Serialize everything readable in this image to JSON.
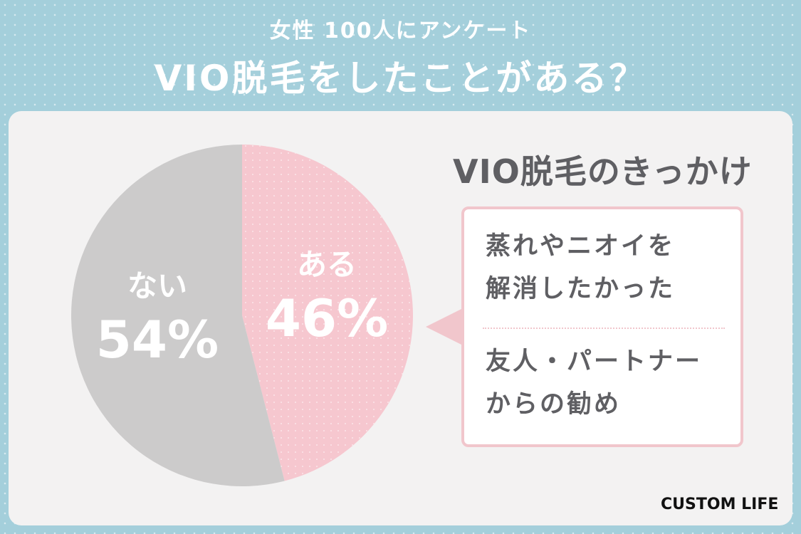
{
  "header": {
    "subtitle": "女性 100人にアンケート",
    "title": "VIO脱毛をしたことがある？"
  },
  "chart_data": {
    "type": "pie",
    "slices": [
      {
        "label": "ある",
        "value": 46,
        "value_label": "46%",
        "color": "#f6c7cf"
      },
      {
        "label": "ない",
        "value": 54,
        "value_label": "54%",
        "color": "#cccbcb"
      }
    ],
    "start_angle": "12 o'clock",
    "direction": "clockwise"
  },
  "reasons": {
    "title": "VIO脱毛のきっかけ",
    "items": [
      {
        "line1": "蒸れやニオイを",
        "line2": "解消したかった"
      },
      {
        "line1": "友人・パートナー",
        "line2": "からの勧め"
      }
    ]
  },
  "brand": {
    "logo_text": "CUSTOM LIFE"
  },
  "colors": {
    "background": "#a4cfdb",
    "card": "#f3f2f2",
    "accent_pink": "#f1c6cc",
    "text_gray": "#5f5f63"
  }
}
